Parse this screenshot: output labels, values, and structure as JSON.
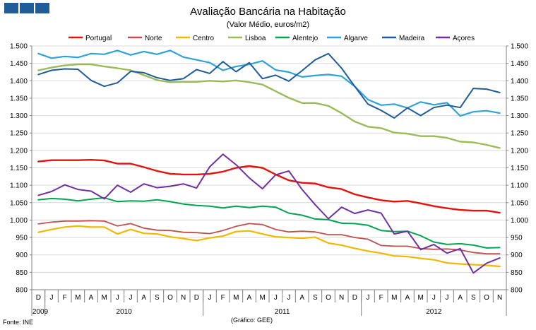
{
  "header": {
    "logo_colors": [
      "#1f5c99",
      "#1f5c99",
      "#1f5c99"
    ]
  },
  "footer": {
    "source": "Fonte: INE",
    "credit": "(Gráfico: GEE)"
  },
  "chart_data": {
    "type": "line",
    "title": "Avaliação Bancária na Habitação",
    "subtitle": "(Valor Médio, euros/m2)",
    "xlabel": "",
    "ylabel": "",
    "ylim": [
      800,
      1500
    ],
    "yticks": [
      800,
      850,
      900,
      950,
      1000,
      1050,
      1100,
      1150,
      1200,
      1250,
      1300,
      1350,
      1400,
      1450,
      1500
    ],
    "ytick_labels": [
      "800",
      "850",
      "900",
      "950",
      "1.000",
      "1.050",
      "1.100",
      "1.150",
      "1.200",
      "1.250",
      "1.300",
      "1.350",
      "1.400",
      "1.450",
      "1.500"
    ],
    "grid": true,
    "legend_position": "top",
    "categories": [
      "D",
      "J",
      "F",
      "M",
      "A",
      "M",
      "J",
      "J",
      "A",
      "S",
      "O",
      "N",
      "D",
      "J",
      "F",
      "M",
      "A",
      "M",
      "J",
      "J",
      "A",
      "S",
      "O",
      "N",
      "D",
      "J",
      "F",
      "M",
      "A",
      "M",
      "J",
      "J",
      "A",
      "S",
      "O",
      "N"
    ],
    "years": [
      {
        "label": "2009",
        "start": 0,
        "end": 0
      },
      {
        "label": "2010",
        "start": 1,
        "end": 12
      },
      {
        "label": "2011",
        "start": 13,
        "end": 24
      },
      {
        "label": "2012",
        "start": 25,
        "end": 35
      }
    ],
    "series": [
      {
        "name": "Portugal",
        "color": "#e3120b",
        "width": 2.4,
        "values": [
          1168,
          1172,
          1172,
          1172,
          1173,
          1171,
          1162,
          1162,
          1152,
          1141,
          1133,
          1131,
          1131,
          1133,
          1139,
          1150,
          1155,
          1150,
          1131,
          1114,
          1107,
          1105,
          1094,
          1089,
          1074,
          1065,
          1057,
          1053,
          1055,
          1048,
          1040,
          1034,
          1029,
          1027,
          1027,
          1021
        ]
      },
      {
        "name": "Norte",
        "color": "#c0504d",
        "width": 1.8,
        "values": [
          989,
          994,
          997,
          997,
          998,
          997,
          983,
          990,
          977,
          971,
          970,
          965,
          964,
          961,
          970,
          982,
          990,
          987,
          973,
          966,
          968,
          966,
          958,
          958,
          950,
          945,
          927,
          925,
          925,
          918,
          916,
          917,
          914,
          907,
          903,
          903
        ]
      },
      {
        "name": "Centro",
        "color": "#f0b800",
        "width": 2.2,
        "values": [
          965,
          973,
          980,
          983,
          980,
          980,
          960,
          973,
          962,
          960,
          952,
          947,
          941,
          949,
          954,
          967,
          969,
          960,
          952,
          950,
          948,
          951,
          934,
          928,
          919,
          911,
          905,
          897,
          895,
          890,
          886,
          877,
          874,
          872,
          870,
          867
        ]
      },
      {
        "name": "Lisboa",
        "color": "#9bbb59",
        "width": 2.4,
        "values": [
          1430,
          1438,
          1444,
          1447,
          1447,
          1441,
          1436,
          1430,
          1416,
          1402,
          1396,
          1397,
          1397,
          1400,
          1398,
          1401,
          1396,
          1389,
          1370,
          1351,
          1336,
          1336,
          1328,
          1307,
          1283,
          1268,
          1264,
          1251,
          1248,
          1241,
          1241,
          1236,
          1225,
          1223,
          1216,
          1207
        ]
      },
      {
        "name": "Alentejo",
        "color": "#00a550",
        "width": 2.0,
        "values": [
          1058,
          1062,
          1060,
          1055,
          1060,
          1064,
          1053,
          1055,
          1054,
          1058,
          1053,
          1046,
          1042,
          1040,
          1035,
          1040,
          1036,
          1040,
          1037,
          1020,
          1014,
          1003,
          1001,
          991,
          990,
          985,
          970,
          967,
          968,
          955,
          937,
          930,
          932,
          928,
          920,
          921
        ]
      },
      {
        "name": "Algarve",
        "color": "#2ea3d8",
        "width": 2.2,
        "values": [
          1478,
          1465,
          1470,
          1467,
          1478,
          1476,
          1487,
          1474,
          1484,
          1476,
          1487,
          1468,
          1460,
          1452,
          1430,
          1441,
          1447,
          1457,
          1431,
          1425,
          1411,
          1415,
          1418,
          1413,
          1384,
          1346,
          1330,
          1333,
          1322,
          1339,
          1331,
          1337,
          1299,
          1311,
          1314,
          1307
        ]
      },
      {
        "name": "Madeira",
        "color": "#1f5c99",
        "width": 2.0,
        "values": [
          1418,
          1430,
          1434,
          1433,
          1401,
          1384,
          1394,
          1427,
          1423,
          1409,
          1401,
          1406,
          1432,
          1421,
          1455,
          1426,
          1452,
          1406,
          1416,
          1399,
          1429,
          1460,
          1478,
          1436,
          1384,
          1333,
          1315,
          1293,
          1322,
          1300,
          1323,
          1330,
          1323,
          1378,
          1376,
          1366
        ]
      },
      {
        "name": "Açores",
        "color": "#7030a0",
        "width": 2.0,
        "values": [
          1071,
          1082,
          1101,
          1088,
          1083,
          1061,
          1100,
          1080,
          1104,
          1093,
          1097,
          1104,
          1092,
          1153,
          1189,
          1159,
          1121,
          1090,
          1130,
          1141,
          1088,
          1044,
          1004,
          1037,
          1019,
          1029,
          1020,
          960,
          968,
          915,
          930,
          905,
          918,
          848,
          876,
          891
        ]
      }
    ]
  }
}
